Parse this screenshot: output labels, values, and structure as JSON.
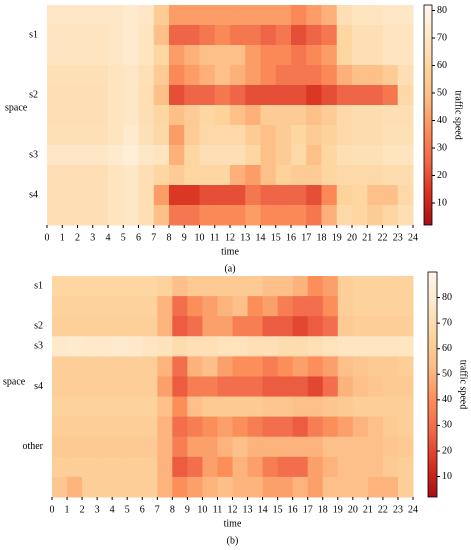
{
  "chart_data": [
    {
      "type": "heatmap",
      "caption": "(a)",
      "xlabel": "time",
      "ylabel": "space",
      "colorbar_label": "traffic speed",
      "xlim": [
        0,
        24
      ],
      "xticks": [
        0,
        1,
        2,
        3,
        4,
        5,
        6,
        7,
        8,
        9,
        10,
        11,
        12,
        13,
        14,
        15,
        16,
        17,
        18,
        19,
        20,
        21,
        22,
        23,
        24
      ],
      "zlim": [
        2,
        82
      ],
      "zticks": [
        10,
        20,
        30,
        40,
        50,
        60,
        70,
        80
      ],
      "colors": [
        "#a50f15",
        "#d7301f",
        "#ef6548",
        "#fc8d59",
        "#fdbb84",
        "#fdd49e",
        "#fee8c8",
        "#fff7ec"
      ],
      "rows": [
        null,
        "s1",
        null,
        null,
        "s2",
        null,
        null,
        "s3",
        null,
        "s4",
        null
      ],
      "values": [
        [
          70,
          70,
          70,
          70,
          70,
          72,
          70,
          55,
          40,
          40,
          40,
          40,
          40,
          40,
          40,
          40,
          35,
          40,
          45,
          65,
          68,
          68,
          70,
          70
        ],
        [
          68,
          68,
          68,
          68,
          70,
          72,
          68,
          50,
          25,
          25,
          30,
          35,
          30,
          30,
          25,
          30,
          20,
          25,
          30,
          60,
          65,
          65,
          68,
          68
        ],
        [
          68,
          68,
          68,
          68,
          70,
          72,
          68,
          60,
          40,
          45,
          50,
          50,
          50,
          40,
          35,
          35,
          30,
          35,
          40,
          60,
          65,
          65,
          68,
          68
        ],
        [
          66,
          66,
          66,
          66,
          68,
          70,
          66,
          55,
          35,
          40,
          45,
          50,
          45,
          40,
          35,
          30,
          30,
          30,
          35,
          45,
          50,
          50,
          55,
          65
        ],
        [
          65,
          65,
          65,
          65,
          68,
          70,
          65,
          50,
          20,
          25,
          25,
          30,
          25,
          20,
          20,
          20,
          20,
          15,
          20,
          25,
          25,
          25,
          30,
          62
        ],
        [
          65,
          65,
          65,
          65,
          68,
          70,
          65,
          60,
          50,
          55,
          60,
          58,
          50,
          45,
          55,
          55,
          55,
          50,
          55,
          62,
          64,
          64,
          65,
          65
        ],
        [
          66,
          66,
          66,
          66,
          68,
          72,
          66,
          62,
          40,
          55,
          62,
          62,
          62,
          55,
          50,
          55,
          60,
          55,
          58,
          62,
          64,
          64,
          66,
          66
        ],
        [
          70,
          70,
          70,
          70,
          72,
          75,
          70,
          68,
          45,
          60,
          65,
          65,
          65,
          60,
          50,
          55,
          62,
          50,
          60,
          65,
          66,
          66,
          68,
          68
        ],
        [
          65,
          65,
          65,
          65,
          68,
          70,
          65,
          60,
          55,
          60,
          60,
          60,
          45,
          40,
          50,
          58,
          55,
          55,
          60,
          62,
          62,
          62,
          64,
          64
        ],
        [
          65,
          65,
          65,
          65,
          68,
          70,
          65,
          40,
          15,
          15,
          20,
          20,
          20,
          30,
          25,
          25,
          25,
          20,
          35,
          58,
          60,
          50,
          50,
          62
        ],
        [
          65,
          65,
          65,
          65,
          68,
          70,
          65,
          50,
          30,
          30,
          35,
          35,
          35,
          40,
          35,
          35,
          35,
          30,
          45,
          62,
          60,
          55,
          60,
          65
        ]
      ]
    },
    {
      "type": "heatmap",
      "caption": "(b)",
      "xlabel": "time",
      "ylabel": "space",
      "colorbar_label": "traffic speed",
      "xlim": [
        0,
        24
      ],
      "xticks": [
        0,
        1,
        2,
        3,
        4,
        5,
        6,
        7,
        8,
        9,
        10,
        11,
        12,
        13,
        14,
        15,
        16,
        17,
        18,
        19,
        20,
        21,
        22,
        23,
        24
      ],
      "zlim": [
        2,
        90
      ],
      "zticks": [
        10,
        20,
        30,
        40,
        50,
        60,
        70,
        80
      ],
      "colors": [
        "#a50f15",
        "#d7301f",
        "#ef6548",
        "#fc8d59",
        "#fdbb84",
        "#fdd49e",
        "#fee8c8",
        "#fff7ec"
      ],
      "rows": [
        "s1",
        null,
        "s2",
        "s3",
        null,
        "s4",
        null,
        null,
        "other",
        null,
        null
      ],
      "values": [
        [
          66,
          66,
          66,
          66,
          66,
          66,
          66,
          64,
          55,
          60,
          60,
          60,
          60,
          60,
          55,
          55,
          50,
          40,
          45,
          62,
          64,
          64,
          64,
          64
        ],
        [
          64,
          64,
          64,
          64,
          64,
          64,
          64,
          50,
          30,
          40,
          45,
          50,
          55,
          40,
          45,
          35,
          30,
          30,
          40,
          62,
          64,
          64,
          64,
          64
        ],
        [
          63,
          63,
          63,
          63,
          63,
          63,
          63,
          50,
          25,
          30,
          45,
          45,
          35,
          35,
          25,
          25,
          20,
          25,
          30,
          60,
          62,
          62,
          62,
          62
        ],
        [
          78,
          80,
          78,
          78,
          80,
          78,
          76,
          74,
          70,
          72,
          72,
          74,
          74,
          72,
          72,
          70,
          70,
          72,
          74,
          76,
          76,
          76,
          76,
          76
        ],
        [
          62,
          62,
          62,
          62,
          62,
          62,
          62,
          50,
          30,
          50,
          55,
          45,
          40,
          40,
          35,
          40,
          45,
          40,
          45,
          55,
          58,
          60,
          60,
          62
        ],
        [
          62,
          62,
          62,
          62,
          62,
          62,
          62,
          45,
          25,
          35,
          35,
          30,
          30,
          30,
          25,
          25,
          25,
          20,
          30,
          50,
          55,
          58,
          60,
          60
        ],
        [
          64,
          64,
          64,
          64,
          64,
          64,
          64,
          55,
          40,
          55,
          60,
          60,
          60,
          60,
          58,
          58,
          55,
          55,
          58,
          60,
          62,
          62,
          62,
          62
        ],
        [
          62,
          62,
          62,
          62,
          62,
          62,
          62,
          50,
          30,
          35,
          40,
          45,
          40,
          35,
          30,
          30,
          25,
          35,
          40,
          45,
          50,
          55,
          60,
          62
        ],
        [
          60,
          60,
          60,
          60,
          60,
          60,
          60,
          50,
          35,
          45,
          45,
          50,
          55,
          50,
          50,
          50,
          50,
          50,
          55,
          55,
          55,
          55,
          58,
          60
        ],
        [
          62,
          62,
          62,
          62,
          62,
          62,
          62,
          50,
          25,
          30,
          45,
          40,
          50,
          45,
          35,
          30,
          30,
          45,
          50,
          55,
          55,
          55,
          60,
          62
        ],
        [
          58,
          50,
          62,
          62,
          62,
          62,
          62,
          50,
          40,
          45,
          50,
          55,
          50,
          50,
          45,
          45,
          50,
          45,
          55,
          55,
          55,
          50,
          50,
          62
        ]
      ]
    }
  ]
}
